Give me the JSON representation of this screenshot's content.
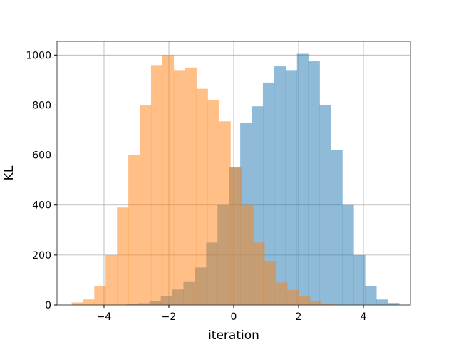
{
  "chart_data": {
    "type": "histogram",
    "title": "",
    "xlabel": "iteration",
    "ylabel": "KL",
    "xlim": [
      -5.45,
      5.45
    ],
    "ylim": [
      0,
      1055
    ],
    "xticks": [
      -4,
      -2,
      0,
      2,
      4
    ],
    "yticks": [
      0,
      200,
      400,
      600,
      800,
      1000
    ],
    "grid": true,
    "series": [
      {
        "color": "#1f77b4",
        "alpha": 0.5,
        "bin_edges": [
          -3.3,
          -2.95,
          -2.6,
          -2.25,
          -1.9,
          -1.55,
          -1.2,
          -0.85,
          -0.5,
          -0.15,
          0.2,
          0.55,
          0.9,
          1.25,
          1.6,
          1.95,
          2.3,
          2.65,
          3.0,
          3.35,
          3.7,
          4.05,
          4.4,
          4.75,
          5.1
        ],
        "counts": [
          3,
          7,
          16,
          37,
          62,
          92,
          150,
          250,
          400,
          550,
          730,
          795,
          890,
          955,
          940,
          1005,
          975,
          800,
          620,
          400,
          200,
          75,
          22,
          8
        ]
      },
      {
        "color": "#ff7f0e",
        "alpha": 0.5,
        "bin_edges": [
          -5.0,
          -4.65,
          -4.3,
          -3.95,
          -3.6,
          -3.25,
          -2.9,
          -2.55,
          -2.2,
          -1.85,
          -1.5,
          -1.15,
          -0.8,
          -0.45,
          -0.1,
          0.25,
          0.6,
          0.95,
          1.3,
          1.65,
          2.0,
          2.35,
          2.7,
          3.05
        ],
        "counts": [
          10,
          22,
          75,
          200,
          390,
          600,
          800,
          960,
          1000,
          940,
          950,
          865,
          820,
          735,
          550,
          400,
          250,
          175,
          90,
          60,
          35,
          15,
          5
        ]
      }
    ]
  }
}
